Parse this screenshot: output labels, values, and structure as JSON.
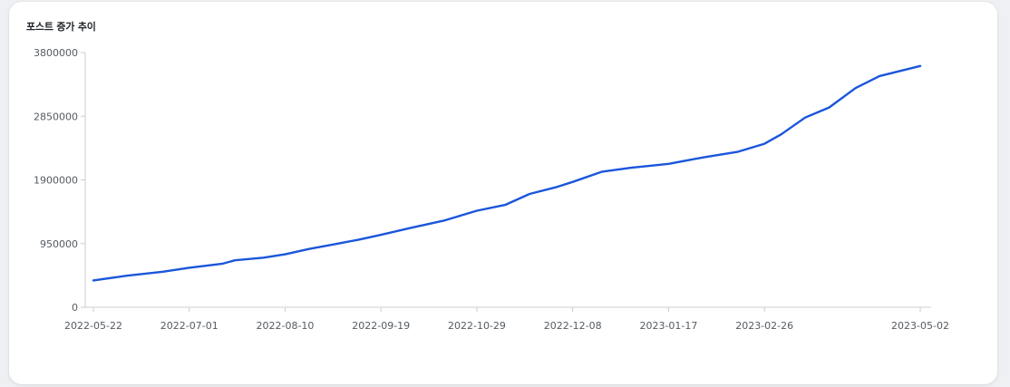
{
  "card": {
    "title": "포스트 증가 추이"
  },
  "chart_data": {
    "type": "line",
    "title": "",
    "xlabel": "",
    "ylabel": "",
    "x_ticks": [
      "2022-05-22",
      "2022-07-01",
      "2022-08-10",
      "2022-09-19",
      "2022-10-29",
      "2022-12-08",
      "2023-01-17",
      "2023-02-26",
      "2023-05-02"
    ],
    "y_ticks": [
      "0",
      "950000",
      "1900000",
      "2850000",
      "3800000"
    ],
    "x_range": [
      "2022-05-22",
      "2023-05-02"
    ],
    "ylim": [
      0,
      3800000
    ],
    "grid": false,
    "line_color": "#1a56db",
    "series": [
      {
        "x": [
          "2022-05-22",
          "2022-06-05",
          "2022-06-20",
          "2022-07-01",
          "2022-07-15",
          "2022-07-20",
          "2022-08-01",
          "2022-08-10",
          "2022-08-20",
          "2022-09-01",
          "2022-09-10",
          "2022-09-19",
          "2022-10-01",
          "2022-10-15",
          "2022-10-29",
          "2022-11-10",
          "2022-11-20",
          "2022-12-01",
          "2022-12-08",
          "2022-12-20",
          "2023-01-01",
          "2023-01-17",
          "2023-02-01",
          "2023-02-15",
          "2023-02-26",
          "2023-03-05",
          "2023-03-15",
          "2023-03-25",
          "2023-04-05",
          "2023-04-15",
          "2023-05-02"
        ],
        "values": [
          400000,
          470000,
          530000,
          590000,
          650000,
          700000,
          740000,
          790000,
          870000,
          950000,
          1010000,
          1080000,
          1180000,
          1290000,
          1440000,
          1530000,
          1690000,
          1790000,
          1870000,
          2020000,
          2080000,
          2140000,
          2240000,
          2320000,
          2440000,
          2580000,
          2830000,
          2980000,
          3270000,
          3450000,
          3600000
        ]
      }
    ]
  }
}
